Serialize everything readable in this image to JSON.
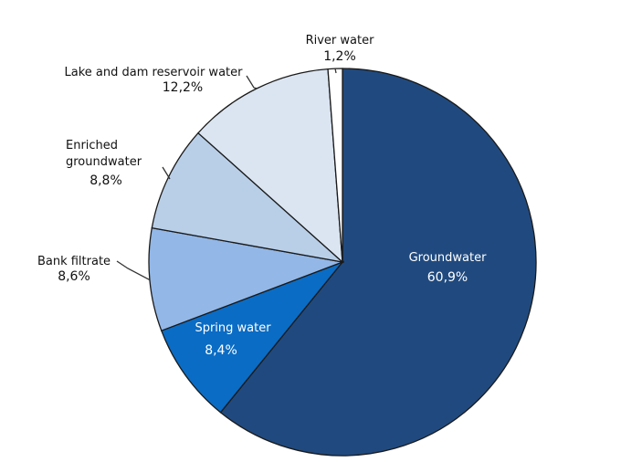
{
  "chart_data": {
    "type": "pie",
    "title": "",
    "slices": [
      {
        "label": "Groundwater",
        "value": 60.9,
        "value_label": "60,9%",
        "color": "#204a7f"
      },
      {
        "label": "Spring water",
        "value": 8.4,
        "value_label": "8,4%",
        "color": "#0a6cc4"
      },
      {
        "label": "Bank filtrate",
        "value": 8.6,
        "value_label": "8,6%",
        "color": "#93b7e6"
      },
      {
        "label": "Enriched groundwater",
        "value": 8.8,
        "value_label": "8,8%",
        "color": "#b9cfe8"
      },
      {
        "label": "Lake and dam reservoir water",
        "value": 12.2,
        "value_label": "12,2%",
        "color": "#dbe5f2"
      },
      {
        "label": "River water",
        "value": 1.2,
        "value_label": "1,2%",
        "color": "#ffffff"
      }
    ],
    "start_angle": "12 o'clock",
    "direction": "clockwise",
    "legend": "none"
  }
}
